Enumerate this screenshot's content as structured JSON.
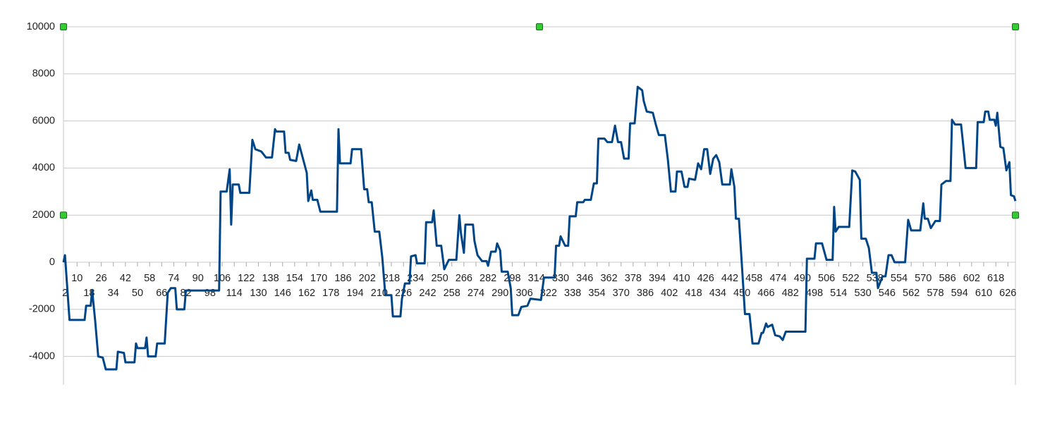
{
  "chart_data": {
    "type": "line",
    "x": [
      1,
      2,
      5,
      15,
      16,
      19,
      20,
      22,
      24,
      27,
      29,
      36,
      37,
      41,
      42,
      48,
      49,
      50,
      55,
      56,
      57,
      62,
      63,
      68,
      70,
      72,
      75,
      76,
      81,
      82,
      104,
      105,
      109,
      111,
      112,
      113,
      117,
      118,
      124,
      126,
      128,
      132,
      135,
      139,
      141,
      142,
      147,
      148,
      150,
      151,
      155,
      157,
      162,
      163,
      165,
      166,
      169,
      171,
      182,
      183,
      184,
      191,
      192,
      198,
      200,
      202,
      203,
      205,
      207,
      210,
      212,
      214,
      218,
      219,
      224,
      225,
      227,
      230,
      231,
      234,
      235,
      240,
      241,
      245,
      246,
      248,
      251,
      253,
      256,
      261,
      263,
      264,
      266,
      267,
      272,
      273,
      275,
      278,
      281,
      282,
      284,
      287,
      288,
      290,
      291,
      295,
      297,
      298,
      302,
      304,
      308,
      310,
      317,
      319,
      326,
      327,
      329,
      330,
      333,
      335,
      336,
      340,
      341,
      345,
      346,
      350,
      352,
      354,
      355,
      359,
      361,
      364,
      366,
      368,
      370,
      372,
      375,
      376,
      379,
      381,
      384,
      385,
      387,
      391,
      393,
      395,
      399,
      401,
      403,
      406,
      407,
      410,
      412,
      414,
      415,
      419,
      421,
      423,
      425,
      427,
      429,
      431,
      433,
      435,
      437,
      442,
      443,
      445,
      446,
      448,
      450,
      452,
      455,
      457,
      461,
      463,
      464,
      466,
      467,
      470,
      472,
      475,
      477,
      479,
      492,
      493,
      498,
      499,
      503,
      506,
      510,
      511,
      512,
      514,
      521,
      523,
      525,
      528,
      529,
      532,
      534,
      536,
      539,
      540,
      543,
      545,
      547,
      549,
      551,
      558,
      560,
      562,
      568,
      570,
      571,
      573,
      575,
      578,
      581,
      582,
      585,
      588,
      589,
      591,
      595,
      596,
      598,
      605,
      606,
      610,
      611,
      613,
      614,
      617,
      618,
      619,
      621,
      623,
      625,
      627,
      628,
      630,
      631
    ],
    "series": [
      {
        "color": "#004586",
        "values": [
          0,
          300,
          -2450,
          -2450,
          -1850,
          -1850,
          -1200,
          -2500,
          -4000,
          -4050,
          -4550,
          -4550,
          -3800,
          -3850,
          -4250,
          -4250,
          -3450,
          -3650,
          -3650,
          -3200,
          -4000,
          -4000,
          -3450,
          -3450,
          -1300,
          -1100,
          -1100,
          -2000,
          -2000,
          -1200,
          -1200,
          3000,
          3000,
          3950,
          1600,
          3300,
          3300,
          2950,
          2950,
          5200,
          4800,
          4700,
          4450,
          4450,
          5650,
          5550,
          5550,
          4650,
          4650,
          4350,
          4300,
          5000,
          3800,
          2600,
          3050,
          2650,
          2650,
          2150,
          2150,
          5650,
          4200,
          4200,
          4800,
          4800,
          3100,
          3100,
          2550,
          2550,
          1300,
          1300,
          200,
          -1400,
          -1400,
          -2300,
          -2300,
          -1550,
          -900,
          -900,
          250,
          300,
          -50,
          -50,
          1700,
          1700,
          2200,
          700,
          700,
          -300,
          100,
          100,
          2000,
          1250,
          400,
          1600,
          1600,
          900,
          300,
          50,
          50,
          -150,
          450,
          450,
          800,
          500,
          -400,
          -400,
          -1100,
          -2250,
          -2250,
          -1900,
          -1850,
          -1550,
          -1600,
          -650,
          -650,
          700,
          700,
          1100,
          700,
          700,
          1950,
          1950,
          2550,
          2550,
          2650,
          2650,
          3350,
          3350,
          5250,
          5250,
          5100,
          5100,
          5800,
          5100,
          5100,
          4400,
          4400,
          5900,
          5900,
          7450,
          7300,
          6850,
          6400,
          6350,
          5850,
          5400,
          5400,
          4350,
          3000,
          3000,
          3850,
          3850,
          3200,
          3200,
          3550,
          3500,
          4200,
          3950,
          4800,
          4800,
          3750,
          4400,
          4550,
          4250,
          3300,
          3300,
          3950,
          3200,
          1850,
          1850,
          -150,
          -2200,
          -2200,
          -3450,
          -3450,
          -3000,
          -3000,
          -2600,
          -2750,
          -2650,
          -3100,
          -3150,
          -3300,
          -2950,
          -2950,
          150,
          150,
          800,
          800,
          100,
          100,
          2350,
          1300,
          1500,
          1500,
          3900,
          3850,
          3500,
          1000,
          1000,
          600,
          -450,
          -450,
          -1100,
          -600,
          -600,
          300,
          300,
          0,
          0,
          1800,
          1350,
          1350,
          2500,
          1850,
          1850,
          1450,
          1750,
          1750,
          3300,
          3450,
          3450,
          6050,
          5850,
          5850,
          5250,
          4000,
          4000,
          5950,
          5950,
          6400,
          6400,
          6050,
          6050,
          5800,
          6350,
          4900,
          4850,
          3900,
          4250,
          2850,
          2800,
          2600
        ]
      }
    ],
    "xlim": [
      1,
      631
    ],
    "xticks": [
      2,
      10,
      18,
      26,
      34,
      42,
      50,
      58,
      66,
      74,
      82,
      90,
      98,
      106,
      114,
      122,
      130,
      138,
      146,
      154,
      162,
      170,
      178,
      186,
      194,
      202,
      210,
      218,
      226,
      234,
      242,
      250,
      258,
      266,
      274,
      282,
      290,
      298,
      306,
      314,
      322,
      330,
      338,
      346,
      354,
      362,
      370,
      378,
      386,
      394,
      402,
      410,
      418,
      426,
      434,
      442,
      450,
      458,
      466,
      474,
      482,
      490,
      498,
      506,
      514,
      522,
      530,
      538,
      546,
      554,
      562,
      570,
      578,
      586,
      594,
      602,
      610,
      618,
      626
    ],
    "ylim": [
      -5200,
      10000
    ],
    "yticks": [
      -4000,
      -2000,
      0,
      2000,
      4000,
      6000,
      8000,
      10000
    ],
    "grid": true
  }
}
